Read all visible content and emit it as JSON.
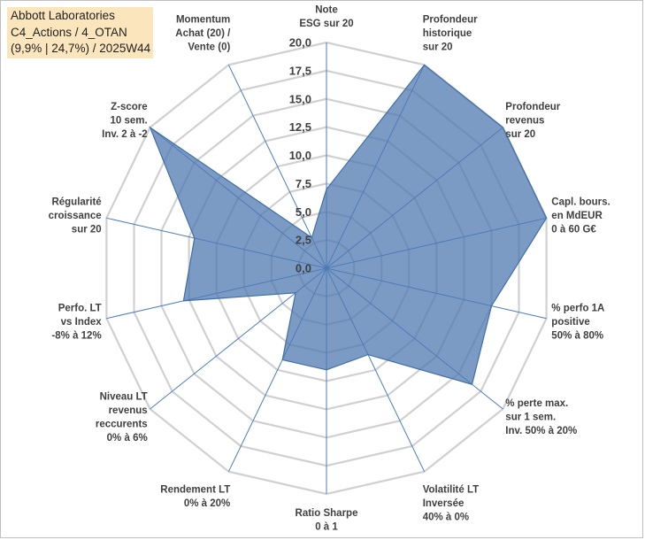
{
  "title": {
    "line1": "Abbott Laboratories",
    "line2": "C4_Actions / 4_OTAN",
    "line3": "(9,9% | 24,7%) / 2025W44"
  },
  "chart_data": {
    "type": "radar",
    "r_min": 0,
    "r_max": 20,
    "r_step": 2.5,
    "ticks": [
      "0,0",
      "2,5",
      "5,0",
      "7,5",
      "10,0",
      "12,5",
      "15,0",
      "17,5",
      "20,0"
    ],
    "axes": [
      {
        "lines": [
          "Note",
          "ESG sur 20"
        ],
        "value": 7.0
      },
      {
        "lines": [
          "Profondeur",
          "historique",
          "sur 20"
        ],
        "value": 20.0
      },
      {
        "lines": [
          "Profondeur",
          "revenus",
          "sur 20"
        ],
        "value": 20.0
      },
      {
        "lines": [
          "Capl. bours.",
          "en MdEUR",
          "0 à 60 G€"
        ],
        "value": 20.0
      },
      {
        "lines": [
          "% perfo 1A",
          "positive",
          "50% à 80%"
        ],
        "value": 15.0
      },
      {
        "lines": [
          "% perte max.",
          "sur 1 sem.",
          "Inv. 50% à 20%"
        ],
        "value": 16.5
      },
      {
        "lines": [
          "Volatilité LT",
          "Inversée",
          "40% à 0%"
        ],
        "value": 8.5
      },
      {
        "lines": [
          "Ratio Sharpe",
          "0 à 1"
        ],
        "value": 9.0
      },
      {
        "lines": [
          "Rendement LT",
          "0% à 20%"
        ],
        "value": 9.0
      },
      {
        "lines": [
          "Niveau LT",
          "revenus",
          "reccurents",
          "0% à 6%"
        ],
        "value": 3.5
      },
      {
        "lines": [
          "Perfo. LT",
          "vs Index",
          "-8% à 12%"
        ],
        "value": 13.0
      },
      {
        "lines": [
          "Régularité",
          "croissance",
          "sur 20"
        ],
        "value": 12.0
      },
      {
        "lines": [
          "Z-score",
          "10 sem.",
          "Inv. 2 à -2"
        ],
        "value": 20.0
      },
      {
        "lines": [
          "Momentum",
          "Achat (20) /",
          "Vente (0)"
        ],
        "value": 3.0
      }
    ],
    "series": [
      {
        "name": "Abbott Laboratories",
        "color": "#4f7ab2"
      }
    ]
  }
}
